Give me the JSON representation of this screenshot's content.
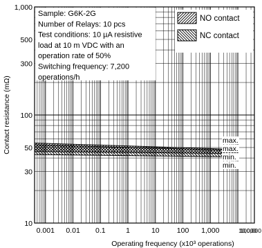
{
  "chart_data": {
    "type": "line",
    "xlabel": "Operating frequency (x10³ operations)",
    "ylabel": "Contact resistance (mΩ)",
    "xscale": "log",
    "yscale": "log",
    "xlim": [
      0.0004,
      40000
    ],
    "ylim": [
      10,
      1000
    ],
    "grid": true,
    "x_ticks": [
      {
        "value": 0.001,
        "label": "0.001"
      },
      {
        "value": 0.01,
        "label": "0.01"
      },
      {
        "value": 0.1,
        "label": "0.1"
      },
      {
        "value": 1,
        "label": "1"
      },
      {
        "value": 10,
        "label": "10"
      },
      {
        "value": 100,
        "label": "100"
      },
      {
        "value": 1000,
        "label": "1,000"
      },
      {
        "value": 10000,
        "label": "10,000"
      },
      {
        "value": 100000,
        "label": "100,000"
      }
    ],
    "y_ticks": [
      {
        "value": 10,
        "label": "10"
      },
      {
        "value": 30,
        "label": "30"
      },
      {
        "value": 50,
        "label": "50"
      },
      {
        "value": 100,
        "label": "100"
      },
      {
        "value": 300,
        "label": "300"
      },
      {
        "value": 500,
        "label": "500"
      },
      {
        "value": 1000,
        "label": "1,000"
      }
    ],
    "notes": [
      "Sample: G6K-2G",
      "Number of Relays: 10 pcs",
      "Test conditions: 10 µA resistive",
      "load at 10 m VDC with an",
      "operation rate of 50%",
      "Switching frequency: 7,200",
      "operations/h"
    ],
    "legend": {
      "position": "top-right",
      "items": [
        {
          "name": "NO contact",
          "hatch": "forward"
        },
        {
          "name": "NC contact",
          "hatch": "backward"
        }
      ]
    },
    "series": [
      {
        "name": "NO contact",
        "band": "upper",
        "x": [
          0.0004,
          10000
        ],
        "max": [
          55,
          48
        ],
        "min": [
          46,
          44
        ]
      },
      {
        "name": "NC contact",
        "band": "lower",
        "x": [
          0.0004,
          10000
        ],
        "max": [
          53,
          47
        ],
        "min": [
          43,
          41
        ]
      }
    ],
    "end_labels": [
      {
        "text": "max.",
        "value": 48
      },
      {
        "text": "max.",
        "value": 47
      },
      {
        "text": "min.",
        "value": 44
      },
      {
        "text": "min.",
        "value": 41
      }
    ]
  }
}
